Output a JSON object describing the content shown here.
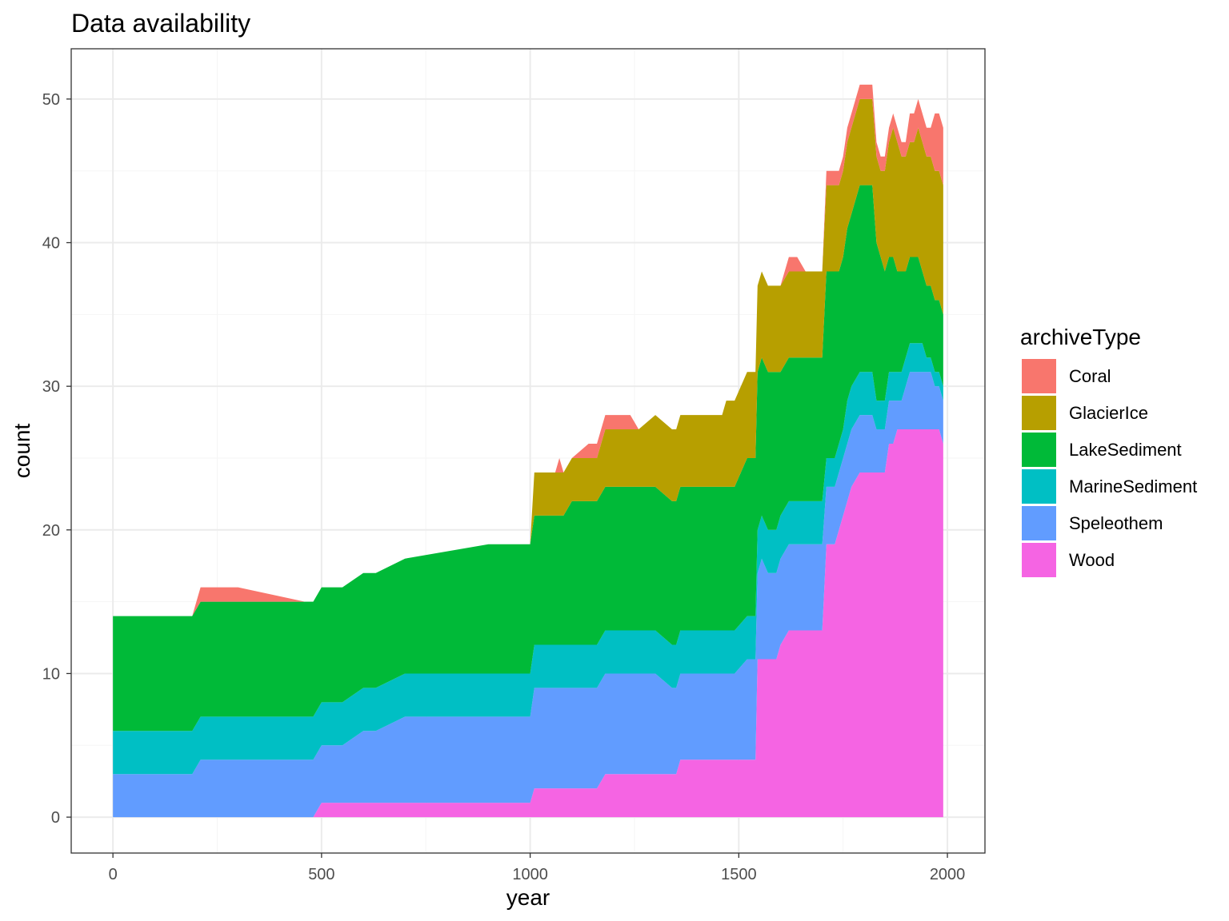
{
  "chart_data": {
    "type": "area",
    "title": "Data availability",
    "xlabel": "year",
    "ylabel": "count",
    "xlim": [
      -100,
      2090
    ],
    "ylim": [
      -2.5,
      53.5
    ],
    "x_ticks": [
      0,
      500,
      1000,
      1500,
      2000
    ],
    "y_ticks": [
      0,
      10,
      20,
      30,
      40,
      50
    ],
    "grid": true,
    "stacked": true,
    "legend": {
      "title": "archiveType",
      "position": "right"
    },
    "x": [
      0,
      100,
      170,
      190,
      210,
      300,
      460,
      480,
      500,
      550,
      600,
      630,
      700,
      900,
      1000,
      1010,
      1040,
      1060,
      1070,
      1080,
      1100,
      1140,
      1160,
      1180,
      1200,
      1240,
      1260,
      1300,
      1340,
      1350,
      1360,
      1400,
      1460,
      1470,
      1490,
      1520,
      1540,
      1545,
      1555,
      1570,
      1590,
      1600,
      1620,
      1640,
      1660,
      1690,
      1700,
      1710,
      1730,
      1740,
      1750,
      1760,
      1770,
      1790,
      1800,
      1810,
      1820,
      1830,
      1840,
      1850,
      1860,
      1870,
      1880,
      1890,
      1900,
      1910,
      1920,
      1930,
      1940,
      1950,
      1960,
      1970,
      1980,
      1990
    ],
    "series": [
      {
        "name": "Wood",
        "color": "#F564E3",
        "values": [
          0,
          0,
          0,
          0,
          0,
          0,
          0,
          0,
          1,
          1,
          1,
          1,
          1,
          1,
          1,
          2,
          2,
          2,
          2,
          2,
          2,
          2,
          2,
          3,
          3,
          3,
          3,
          3,
          3,
          3,
          4,
          4,
          4,
          4,
          4,
          4,
          4,
          11,
          11,
          11,
          11,
          12,
          13,
          13,
          13,
          13,
          13,
          19,
          19,
          20,
          21,
          22,
          23,
          24,
          24,
          24,
          24,
          24,
          24,
          24,
          26,
          26,
          27,
          27,
          27,
          27,
          27,
          27,
          27,
          27,
          27,
          27,
          27,
          26
        ]
      },
      {
        "name": "Speleothem",
        "color": "#619CFF",
        "values": [
          3,
          3,
          3,
          3,
          4,
          4,
          4,
          4,
          4,
          4,
          5,
          5,
          6,
          6,
          6,
          7,
          7,
          7,
          7,
          7,
          7,
          7,
          7,
          7,
          7,
          7,
          7,
          7,
          6,
          6,
          6,
          6,
          6,
          6,
          6,
          7,
          7,
          6,
          7,
          6,
          6,
          6,
          6,
          6,
          6,
          6,
          6,
          4,
          4,
          4,
          4,
          4,
          4,
          4,
          4,
          4,
          4,
          3,
          3,
          3,
          3,
          3,
          2,
          2,
          3,
          4,
          4,
          4,
          4,
          4,
          4,
          3,
          3,
          3
        ]
      },
      {
        "name": "MarineSediment",
        "color": "#00BFC4",
        "values": [
          3,
          3,
          3,
          3,
          3,
          3,
          3,
          3,
          3,
          3,
          3,
          3,
          3,
          3,
          3,
          3,
          3,
          3,
          3,
          3,
          3,
          3,
          3,
          3,
          3,
          3,
          3,
          3,
          3,
          3,
          3,
          3,
          3,
          3,
          3,
          3,
          3,
          3,
          3,
          3,
          3,
          3,
          3,
          3,
          3,
          3,
          3,
          2,
          2,
          2,
          2,
          3,
          3,
          3,
          3,
          3,
          3,
          2,
          2,
          2,
          2,
          2,
          2,
          2,
          2,
          2,
          2,
          2,
          2,
          1,
          1,
          1,
          1,
          1
        ]
      },
      {
        "name": "LakeSediment",
        "color": "#00BA38",
        "values": [
          8,
          8,
          8,
          8,
          8,
          8,
          8,
          8,
          8,
          8,
          8,
          8,
          8,
          9,
          9,
          9,
          9,
          9,
          9,
          9,
          10,
          10,
          10,
          10,
          10,
          10,
          10,
          10,
          10,
          10,
          10,
          10,
          10,
          10,
          10,
          11,
          11,
          11,
          11,
          11,
          11,
          10,
          10,
          10,
          10,
          10,
          10,
          13,
          13,
          12,
          12,
          12,
          12,
          13,
          13,
          13,
          13,
          11,
          10,
          9,
          8,
          8,
          7,
          7,
          6,
          6,
          6,
          6,
          5,
          5,
          5,
          5,
          5,
          5
        ]
      },
      {
        "name": "GlacierIce",
        "color": "#B79F00",
        "values": [
          0,
          0,
          0,
          0,
          0,
          0,
          0,
          0,
          0,
          0,
          0,
          0,
          0,
          0,
          0,
          3,
          3,
          3,
          3,
          3,
          3,
          3,
          3,
          4,
          4,
          4,
          4,
          5,
          5,
          5,
          5,
          5,
          5,
          6,
          6,
          6,
          6,
          6,
          6,
          6,
          6,
          6,
          6,
          6,
          6,
          6,
          6,
          6,
          6,
          6,
          6,
          6,
          6,
          6,
          6,
          6,
          6,
          6,
          6,
          7,
          8,
          9,
          9,
          8,
          8,
          8,
          8,
          9,
          9,
          9,
          9,
          9,
          9,
          9
        ]
      },
      {
        "name": "Coral",
        "color": "#F8766D",
        "values": [
          0,
          0,
          0,
          0,
          1,
          1,
          0,
          0,
          0,
          0,
          0,
          0,
          0,
          0,
          0,
          0,
          0,
          0,
          1,
          0,
          0,
          1,
          1,
          1,
          1,
          1,
          0,
          0,
          0,
          0,
          0,
          0,
          0,
          0,
          0,
          0,
          0,
          0,
          0,
          0,
          0,
          0,
          1,
          1,
          0,
          0,
          0,
          1,
          1,
          1,
          1,
          1,
          1,
          1,
          1,
          1,
          1,
          1,
          1,
          1,
          1,
          1,
          1,
          1,
          1,
          2,
          2,
          2,
          2,
          2,
          2,
          4,
          4,
          4
        ]
      }
    ]
  },
  "colors": {
    "panel_border": "#333333",
    "grid_major": "#EBEBEB",
    "grid_minor": "#F5F5F5",
    "axis_text": "#4D4D4D",
    "tick": "#333333"
  }
}
